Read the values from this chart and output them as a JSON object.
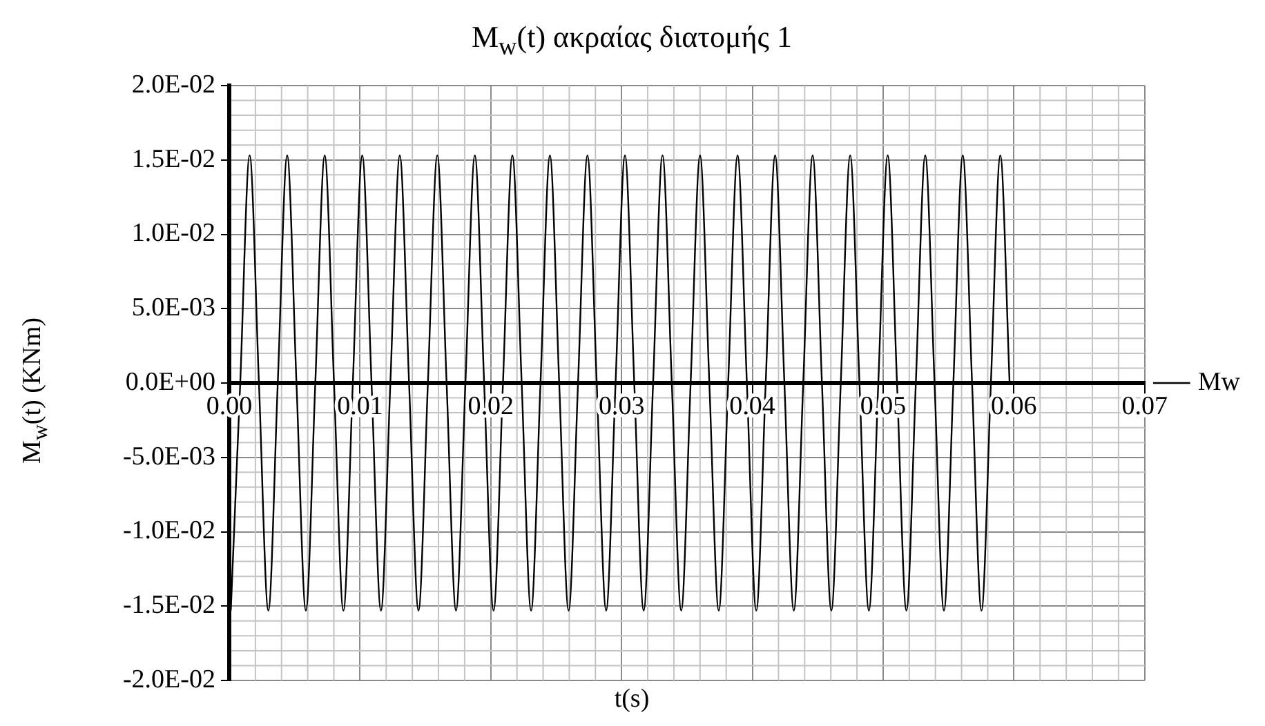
{
  "chart_data": {
    "type": "line",
    "title": "M$_{w}$(t) ακραίας διατομής 1",
    "xlabel": "t(s)",
    "ylabel": "M$_{w}$(t) (KNm)",
    "x": [
      0.00012,
      0.00084,
      0.00156,
      0.00227,
      0.00299,
      0.00371,
      0.00443,
      0.00514,
      0.00586,
      0.00658,
      0.0073,
      0.00801,
      0.00873,
      0.00945,
      0.01017,
      0.01088,
      0.0116,
      0.01232,
      0.01304,
      0.01375,
      0.01447,
      0.01519,
      0.01591,
      0.01662,
      0.01734,
      0.01806,
      0.01878,
      0.01949,
      0.02021,
      0.02093,
      0.02165,
      0.02236,
      0.02308,
      0.0238,
      0.02452,
      0.02523,
      0.02595,
      0.02667,
      0.02739,
      0.0281,
      0.02882,
      0.02954,
      0.03026,
      0.03097,
      0.03169,
      0.03241,
      0.03313,
      0.03384,
      0.03456,
      0.03528,
      0.036,
      0.03671,
      0.03743,
      0.03815,
      0.03887,
      0.03958,
      0.0403,
      0.04102,
      0.04174,
      0.04245,
      0.04317,
      0.04389,
      0.04461,
      0.04532,
      0.04604,
      0.04676,
      0.04748,
      0.04819,
      0.04891,
      0.04963,
      0.05035,
      0.05106,
      0.05178,
      0.0525,
      0.05322,
      0.05393,
      0.05465,
      0.05537,
      0.05609,
      0.0568,
      0.05752,
      0.05824,
      0.05896,
      0.05967
    ],
    "series": [
      {
        "name": "Mw",
        "color": "#000000",
        "values": [
          -0.0153,
          0,
          0.0153,
          0,
          -0.0153,
          0,
          0.0153,
          0,
          -0.0153,
          0,
          0.0153,
          0,
          -0.0153,
          0,
          0.0153,
          0,
          -0.0153,
          0,
          0.0153,
          0,
          -0.0153,
          0,
          0.0153,
          0,
          -0.0153,
          0,
          0.0153,
          0,
          -0.0153,
          0,
          0.0153,
          0,
          -0.0153,
          0,
          0.0153,
          0,
          -0.0153,
          0,
          0.0153,
          0,
          -0.0153,
          0,
          0.0153,
          0,
          -0.0153,
          0,
          0.0153,
          0,
          -0.0153,
          0,
          0.0153,
          0,
          -0.0153,
          0,
          0.0153,
          0,
          -0.0153,
          0,
          0.0153,
          0,
          -0.0153,
          0,
          0.0153,
          0,
          -0.0153,
          0,
          0.0153,
          0,
          -0.0153,
          0,
          0.0153,
          0,
          -0.0153,
          0,
          0.0153,
          0,
          -0.0153,
          0,
          0.0153,
          0,
          -0.0153,
          0,
          0.0153,
          0
        ]
      }
    ],
    "xlim": [
      0,
      0.07
    ],
    "xticks": [
      {
        "value": 0,
        "label": "0.00"
      },
      {
        "value": 0.01,
        "label": "0.01"
      },
      {
        "value": 0.02,
        "label": "0.02"
      },
      {
        "value": 0.03,
        "label": "0.03"
      },
      {
        "value": 0.04,
        "label": "0.04"
      },
      {
        "value": 0.05,
        "label": "0.05"
      },
      {
        "value": 0.06,
        "label": "0.06"
      },
      {
        "value": 0.07,
        "label": "0.07"
      }
    ],
    "ylim": [
      -0.02,
      0.02
    ],
    "yticks": [
      {
        "value": -0.02,
        "label": "-2.0E-02"
      },
      {
        "value": -0.015,
        "label": "-1.5E-02"
      },
      {
        "value": -0.01,
        "label": "-1.0E-02"
      },
      {
        "value": -0.005,
        "label": "-5.0E-03"
      },
      {
        "value": 0,
        "label": "0.0E+00"
      },
      {
        "value": 0.005,
        "label": "5.0E-03"
      },
      {
        "value": 0.01,
        "label": "1.0E-02"
      },
      {
        "value": 0.015,
        "label": "1.5E-02"
      },
      {
        "value": 0.02,
        "label": "2.0E-02"
      }
    ],
    "grid": true,
    "legend": "right",
    "marker": "none",
    "line_style": "solid"
  }
}
